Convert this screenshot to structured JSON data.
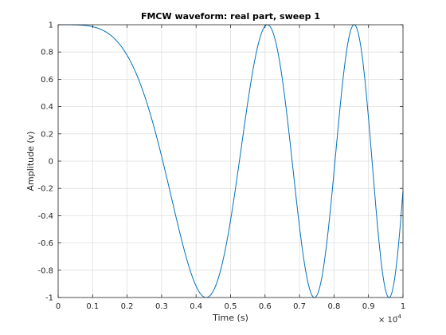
{
  "chart_data": {
    "type": "line",
    "title": "FMCW waveform: real part, sweep 1",
    "xlabel": "Time (s)",
    "ylabel": "Amplitude (v)",
    "x_multiplier_base": "× 10",
    "x_multiplier_exponent": "-4",
    "xlim": [
      0,
      1
    ],
    "ylim": [
      -1,
      1
    ],
    "grid": true,
    "x_ticks": [
      "0",
      "0.1",
      "0.2",
      "0.3",
      "0.4",
      "0.5",
      "0.6",
      "0.7",
      "0.8",
      "0.9",
      "1"
    ],
    "y_ticks": [
      "1",
      "0.8",
      "0.6",
      "0.4",
      "0.2",
      "0",
      "-0.2",
      "-0.4",
      "-0.6",
      "-0.8",
      "-1"
    ],
    "series": [
      {
        "color": "#0072bd",
        "waveform": "cos(pi * k * t^2)",
        "k": 5.43,
        "x_start": 0,
        "x_end": 1
      }
    ]
  }
}
